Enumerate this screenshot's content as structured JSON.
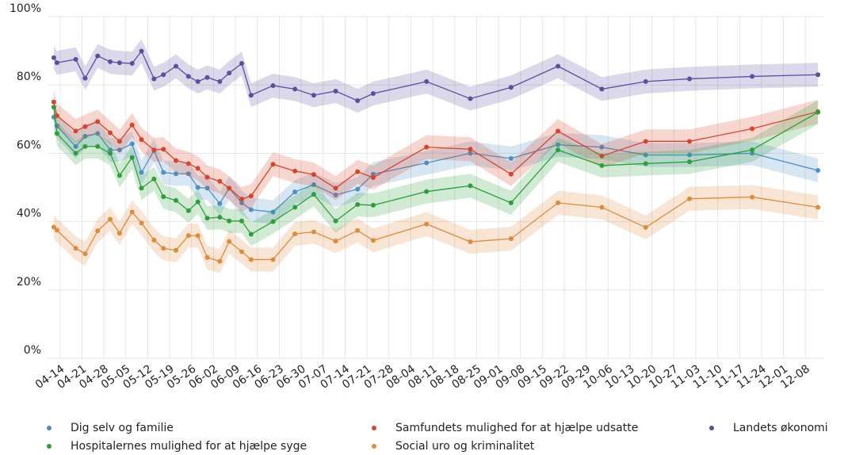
{
  "chart_data": {
    "type": "line",
    "x": [
      "04-12",
      "04-13",
      "04-19",
      "04-22",
      "04-26",
      "04-30",
      "05-03",
      "05-07",
      "05-10",
      "05-14",
      "05-17",
      "05-21",
      "05-25",
      "05-28",
      "05-31",
      "06-04",
      "06-07",
      "06-11",
      "06-14",
      "06-21",
      "06-28",
      "07-04",
      "07-11",
      "07-18",
      "07-23",
      "08-09",
      "08-23",
      "09-05",
      "09-20",
      "10-04",
      "10-18",
      "11-01",
      "11-21",
      "12-12"
    ],
    "series": [
      {
        "name": "Dig selv og familie",
        "color": "#4e8fc6",
        "values": [
          70.6,
          68,
          62,
          65,
          65.8,
          61,
          61,
          62.8,
          54.4,
          60.8,
          54.4,
          54,
          54,
          50,
          49.8,
          45.3,
          49.8,
          45.5,
          43.5,
          42.8,
          48.7,
          50.8,
          47.8,
          49.5,
          53.9,
          57.2,
          60,
          58.5,
          62.5,
          61.8,
          59.5,
          59.5,
          60,
          55
        ]
      },
      {
        "name": "Samfundets mulighed for at hjælpe udsatte",
        "color": "#d9432b",
        "values": [
          75,
          71,
          66.5,
          67.8,
          69.3,
          66,
          63.5,
          68.3,
          64,
          61,
          61.2,
          57.9,
          57,
          55.6,
          53,
          51.8,
          49.8,
          46.6,
          47.5,
          56.8,
          54.8,
          53.8,
          49.8,
          54.6,
          52.9,
          61.8,
          61.2,
          53.9,
          66.5,
          59.2,
          63.5,
          63.5,
          67.2,
          72.2
        ]
      },
      {
        "name": "Landets økonomi",
        "color": "#5b4f9e",
        "values": [
          88,
          86.5,
          87.5,
          82,
          88.5,
          86.8,
          86.5,
          86.3,
          89.9,
          81.8,
          83,
          85.5,
          82.5,
          81,
          82.2,
          81,
          83.5,
          86.3,
          77,
          79.8,
          78.8,
          77,
          78.2,
          75.4,
          77.5,
          81,
          76,
          79.3,
          85.5,
          78.8,
          81,
          81.8,
          82.5,
          83
        ]
      },
      {
        "name": "Hospitalernes mulighed for at hjælpe syge",
        "color": "#2f9e3a",
        "values": [
          73.5,
          65.8,
          60,
          62,
          62,
          60,
          53.5,
          58.8,
          49.8,
          52.5,
          47.3,
          46.2,
          43.2,
          45.8,
          41,
          41.3,
          40.2,
          40.2,
          36.3,
          40,
          44.2,
          48,
          40.2,
          45,
          44.8,
          48.8,
          50.5,
          45.5,
          61,
          56.4,
          57,
          57.5,
          61,
          72
        ]
      },
      {
        "name": "Social uro og kriminalitet",
        "color": "#e08a3c",
        "values": [
          38.4,
          37.5,
          32.2,
          30.6,
          37.3,
          40.7,
          36.6,
          42.8,
          39.6,
          34.6,
          32.2,
          31.6,
          35.9,
          35.9,
          29.5,
          28.4,
          34.2,
          31.2,
          28.9,
          28.9,
          36.4,
          37,
          34.3,
          37.4,
          34.5,
          39.3,
          34.1,
          35,
          45.5,
          44.2,
          38.3,
          46.7,
          47.2,
          44.2
        ]
      }
    ],
    "band": 3.5,
    "xlim": [
      "04-10",
      "12-14"
    ],
    "xticks": [
      "04-14",
      "04-21",
      "04-28",
      "05-05",
      "05-12",
      "05-19",
      "05-26",
      "06-02",
      "06-09",
      "06-16",
      "06-23",
      "06-30",
      "07-07",
      "07-14",
      "07-21",
      "07-28",
      "08-04",
      "08-11",
      "08-18",
      "08-25",
      "09-01",
      "09-08",
      "09-15",
      "09-22",
      "09-29",
      "10-06",
      "10-13",
      "10-20",
      "10-27",
      "11-03",
      "11-10",
      "11-17",
      "11-24",
      "12-01",
      "12-08"
    ],
    "ylim": [
      0,
      100
    ],
    "yticks": [
      {
        "value": 0,
        "label": "0%"
      },
      {
        "value": 20,
        "label": "20%"
      },
      {
        "value": 40,
        "label": "40%"
      },
      {
        "value": 60,
        "label": "60%"
      },
      {
        "value": 80,
        "label": "80%"
      },
      {
        "value": 100,
        "label": "100%"
      }
    ],
    "grid": true,
    "legend": "bottom"
  }
}
